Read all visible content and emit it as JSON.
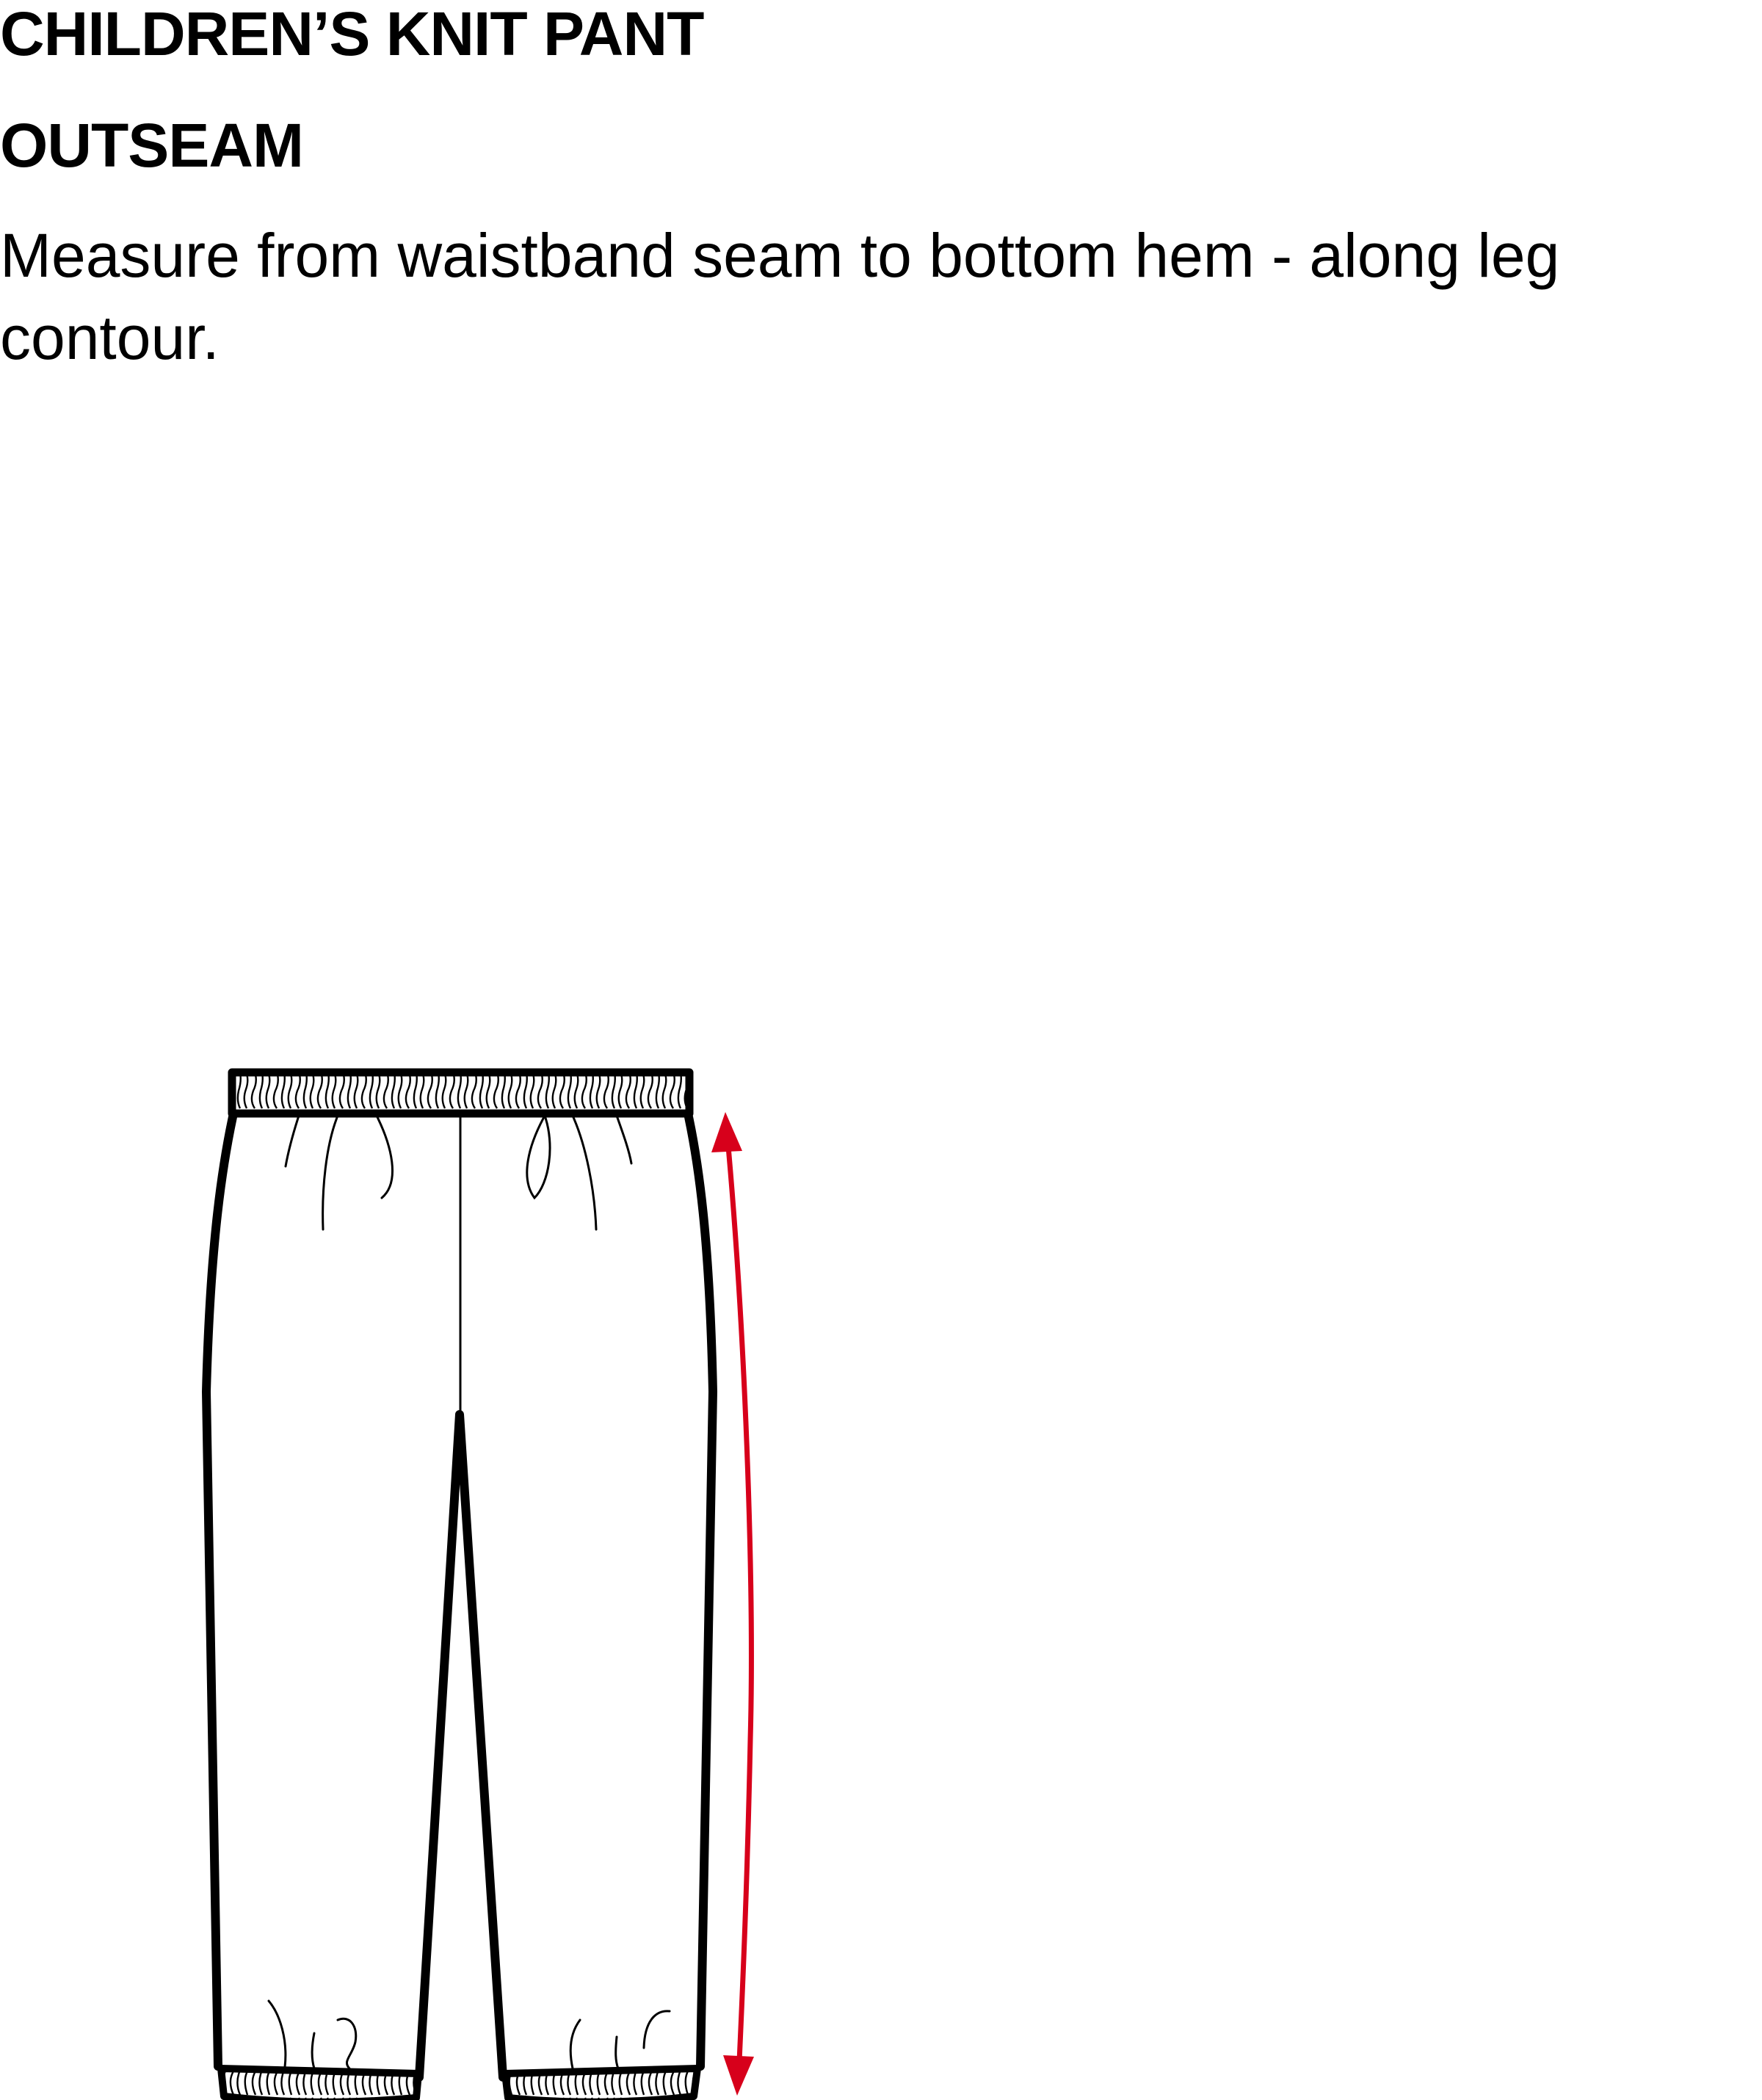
{
  "header": {
    "title": "CHILDREN’S KNIT PANT",
    "measurement_name": "OUTSEAM",
    "instruction": "Measure from waistband seam to bottom hem - along leg contour."
  },
  "diagram": {
    "garment": "knit pant",
    "outline_color": "#000000",
    "arrow_color": "#d7001b",
    "arrow_icon": "double-headed-arrow-icon"
  }
}
